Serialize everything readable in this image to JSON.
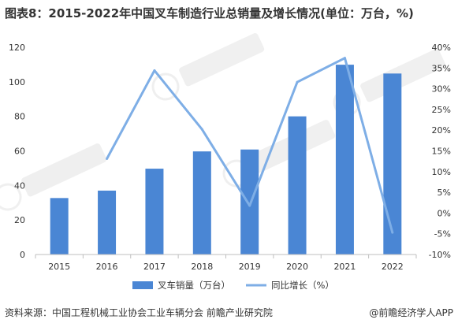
{
  "title": "图表8：2015-2022年中国叉车制造行业总销量及增长情况(单位：万台，%)",
  "source": "资料来源：中国工程机械工业协会工业车辆分会 前瞻产业研究院",
  "brand": "@前瞻经济学人APP",
  "colors": {
    "bar": "#4a86d4",
    "line": "#7eaee6",
    "axis": "#bfbfbf"
  },
  "chart_data": {
    "type": "bar",
    "categories": [
      "2015",
      "2016",
      "2017",
      "2018",
      "2019",
      "2020",
      "2021",
      "2022"
    ],
    "series": [
      {
        "name": "叉车销量（万台）",
        "type": "bar",
        "axis": "left",
        "values": [
          32.7,
          37.0,
          49.7,
          59.7,
          60.8,
          80.0,
          109.9,
          104.8
        ]
      },
      {
        "name": "同比增长（%）",
        "type": "line",
        "axis": "right",
        "values": [
          null,
          13.1,
          34.4,
          20.2,
          1.8,
          31.6,
          37.4,
          -4.7
        ]
      }
    ],
    "ylim_left": [
      0,
      120
    ],
    "yticks_left": [
      "0",
      "20",
      "40",
      "60",
      "80",
      "100",
      "120"
    ],
    "ylim_right": [
      -10,
      40
    ],
    "yticks_right": [
      "-10%",
      "-5%",
      "0%",
      "5%",
      "10%",
      "15%",
      "20%",
      "25%",
      "30%",
      "35%",
      "40%"
    ],
    "legend_position": "bottom",
    "grid": false
  }
}
